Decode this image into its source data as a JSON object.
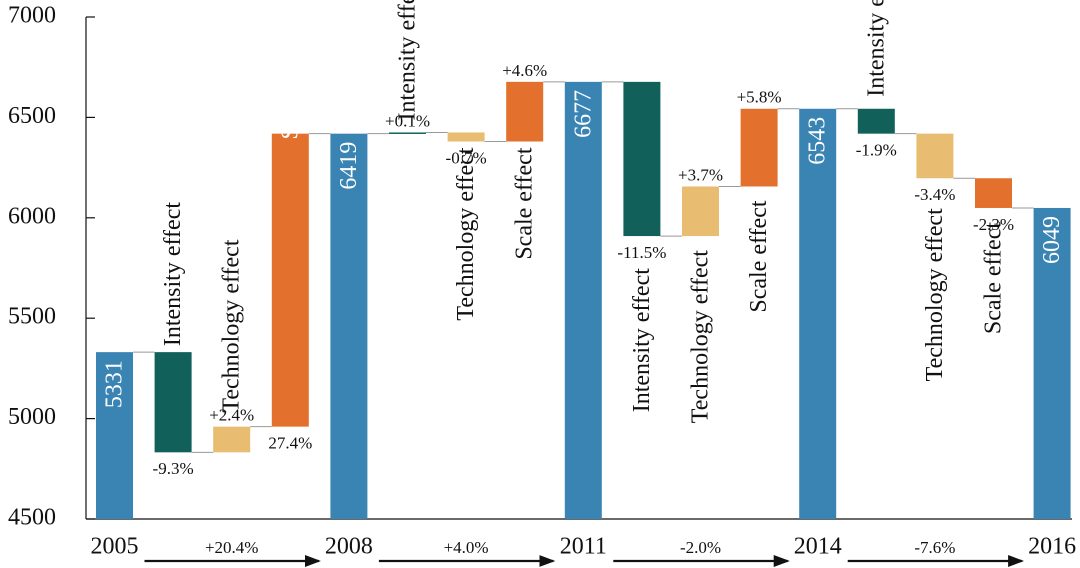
{
  "colors": {
    "total": "#3a84b4",
    "intensity": "#11605a",
    "technology": "#e8bd72",
    "scale": "#e3702c",
    "connector": "#999999",
    "axis": "#111111"
  },
  "chart_data": {
    "type": "bar",
    "subtype": "waterfall",
    "ylim": [
      4500,
      7000
    ],
    "yticks": [
      "4500",
      "5000",
      "5500",
      "6000",
      "6500",
      "7000"
    ],
    "grid": false,
    "bars": [
      {
        "kind": "total",
        "label": "",
        "value_label": "5331",
        "start": 4500,
        "end": 5331,
        "pct": ""
      },
      {
        "kind": "intensity",
        "label": "Intensity effect",
        "value_label": "",
        "start": 5331,
        "end": 4832,
        "pct": "-9.3%"
      },
      {
        "kind": "technology",
        "label": "Technology effect",
        "value_label": "",
        "start": 4832,
        "end": 4960,
        "pct": "+2.4%"
      },
      {
        "kind": "scale",
        "label": "Scale effect",
        "value_label": "",
        "start": 4960,
        "end": 6419,
        "pct": "27.4%"
      },
      {
        "kind": "total",
        "label": "",
        "value_label": "6419",
        "start": 4500,
        "end": 6419,
        "pct": ""
      },
      {
        "kind": "intensity",
        "label": "Intensity effect",
        "value_label": "",
        "start": 6419,
        "end": 6425,
        "pct": "+0.1%"
      },
      {
        "kind": "technology",
        "label": "Technology effect",
        "value_label": "",
        "start": 6425,
        "end": 6380,
        "pct": "-0.7%"
      },
      {
        "kind": "scale",
        "label": "Scale effect",
        "value_label": "",
        "start": 6380,
        "end": 6677,
        "pct": "+4.6%"
      },
      {
        "kind": "total",
        "label": "",
        "value_label": "6677",
        "start": 4500,
        "end": 6677,
        "pct": ""
      },
      {
        "kind": "intensity",
        "label": "Intensity effect",
        "value_label": "",
        "start": 6677,
        "end": 5909,
        "pct": "-11.5%"
      },
      {
        "kind": "technology",
        "label": "Technology effect",
        "value_label": "",
        "start": 5909,
        "end": 6156,
        "pct": "+3.7%"
      },
      {
        "kind": "scale",
        "label": "Scale effect",
        "value_label": "",
        "start": 6156,
        "end": 6543,
        "pct": "+5.8%"
      },
      {
        "kind": "total",
        "label": "",
        "value_label": "6543",
        "start": 4500,
        "end": 6543,
        "pct": ""
      },
      {
        "kind": "intensity",
        "label": "Intensity effect",
        "value_label": "",
        "start": 6543,
        "end": 6419,
        "pct": "-1.9%"
      },
      {
        "kind": "technology",
        "label": "Technology effect",
        "value_label": "",
        "start": 6419,
        "end": 6197,
        "pct": "-3.4%"
      },
      {
        "kind": "scale",
        "label": "Scale effect",
        "value_label": "",
        "start": 6197,
        "end": 6049,
        "pct": "-2.3%"
      },
      {
        "kind": "total",
        "label": "",
        "value_label": "6049",
        "start": 4500,
        "end": 6049,
        "pct": ""
      }
    ],
    "years": [
      "2005",
      "2008",
      "2011",
      "2014",
      "2016"
    ],
    "period_growth": [
      "+20.4%",
      "+4.0%",
      "-2.0%",
      "-7.6%"
    ]
  }
}
